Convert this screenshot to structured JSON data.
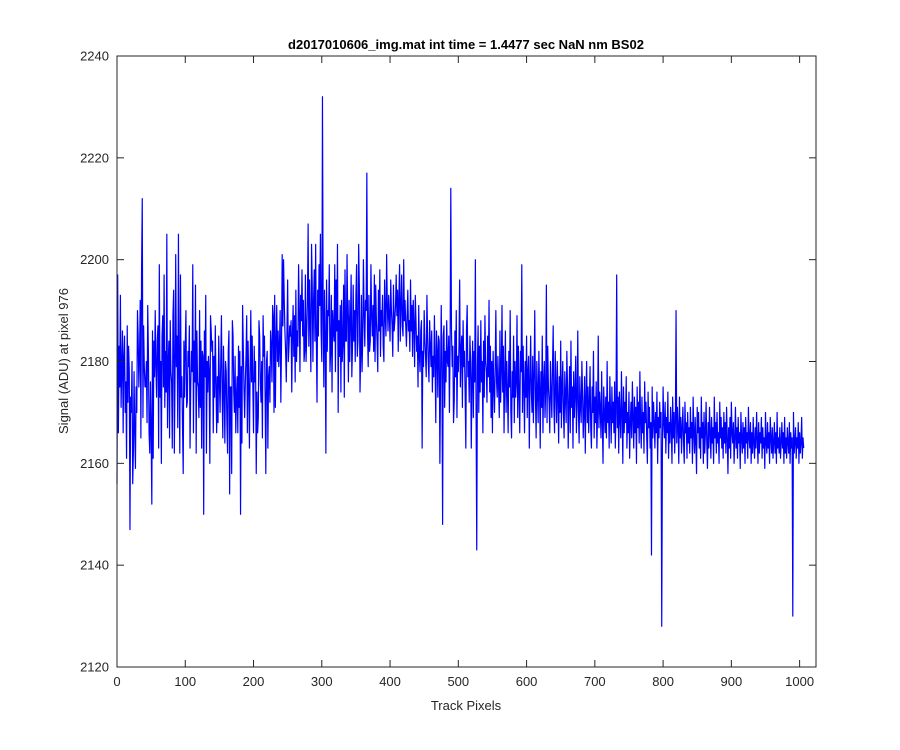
{
  "chart_data": {
    "type": "line",
    "title": "d2017010606_img.mat int time = 1.4477 sec  NaN nm BS02",
    "xlabel": "Track Pixels",
    "ylabel": "Signal (ADU) at pixel 976",
    "xlim": [
      0,
      1024
    ],
    "ylim": [
      2120,
      2240
    ],
    "xticks": [
      0,
      100,
      200,
      300,
      400,
      500,
      600,
      700,
      800,
      900,
      1000
    ],
    "yticks": [
      2120,
      2140,
      2160,
      2180,
      2200,
      2220,
      2240
    ],
    "xtick_labels": [
      "0",
      "100",
      "200",
      "300",
      "400",
      "500",
      "600",
      "700",
      "800",
      "900",
      "1000"
    ],
    "ytick_labels": [
      "2120",
      "2140",
      "2160",
      "2180",
      "2200",
      "2220",
      "2240"
    ],
    "grid": false,
    "series_color": "#0000ff",
    "x_step": 1,
    "series": [
      {
        "values": [
          2156,
          2197,
          2166,
          2183,
          2175,
          2193,
          2171,
          2179,
          2186,
          2166,
          2181,
          2185,
          2170,
          2176,
          2161,
          2187,
          2172,
          2183,
          2178,
          2147,
          2173,
          2170,
          2180,
          2156,
          2162,
          2178,
          2166,
          2159,
          2175,
          2170,
          2190,
          2185,
          2175,
          2181,
          2192,
          2165,
          2198,
          2212,
          2169,
          2187,
          2179,
          2175,
          2175,
          2180,
          2168,
          2191,
          2182,
          2166,
          2162,
          2176,
          2166,
          2152,
          2186,
          2161,
          2184,
          2177,
          2190,
          2179,
          2173,
          2184,
          2187,
          2163,
          2199,
          2173,
          2180,
          2160,
          2185,
          2189,
          2175,
          2197,
          2171,
          2182,
          2174,
          2205,
          2167,
          2179,
          2184,
          2165,
          2188,
          2178,
          2176,
          2163,
          2189,
          2194,
          2162,
          2177,
          2201,
          2179,
          2185,
          2167,
          2205,
          2178,
          2162,
          2197,
          2173,
          2177,
          2167,
          2158,
          2184,
          2173,
          2183,
          2190,
          2171,
          2172,
          2182,
          2179,
          2187,
          2163,
          2175,
          2182,
          2178,
          2199,
          2166,
          2184,
          2176,
          2195,
          2162,
          2186,
          2176,
          2175,
          2169,
          2190,
          2171,
          2184,
          2163,
          2182,
          2181,
          2150,
          2186,
          2177,
          2193,
          2162,
          2180,
          2174,
          2181,
          2178,
          2160,
          2189,
          2186,
          2182,
          2184,
          2166,
          2181,
          2173,
          2187,
          2176,
          2166,
          2177,
          2168,
          2185,
          2176,
          2170,
          2180,
          2189,
          2174,
          2165,
          2183,
          2175,
          2164,
          2180,
          2178,
          2168,
          2162,
          2182,
          2186,
          2154,
          2175,
          2175,
          2158,
          2188,
          2185,
          2174,
          2170,
          2181,
          2166,
          2173,
          2177,
          2166,
          2183,
          2171,
          2182,
          2150,
          2179,
          2164,
          2191,
          2183,
          2175,
          2169,
          2176,
          2181,
          2189,
          2166,
          2184,
          2176,
          2163,
          2178,
          2190,
          2176,
          2185,
          2175,
          2166,
          2183,
          2176,
          2180,
          2158,
          2174,
          2166,
          2169,
          2188,
          2185,
          2176,
          2172,
          2180,
          2165,
          2189,
          2181,
          2185,
          2173,
          2158,
          2180,
          2182,
          2163,
          2177,
          2179,
          2172,
          2186,
          2183,
          2176,
          2191,
          2189,
          2170,
          2193,
          2171,
          2184,
          2191,
          2180,
          2186,
          2179,
          2183,
          2190,
          2172,
          2183,
          2201,
          2187,
          2200,
          2192,
          2186,
          2182,
          2176,
          2186,
          2196,
          2180,
          2183,
          2187,
          2185,
          2188,
          2174,
          2185,
          2191,
          2181,
          2189,
          2176,
          2194,
          2180,
          2186,
          2183,
          2199,
          2190,
          2178,
          2193,
          2188,
          2198,
          2185,
          2192,
          2180,
          2182,
          2197,
          2180,
          2186,
          2192,
          2207,
          2183,
          2196,
          2187,
          2178,
          2203,
          2195,
          2180,
          2192,
          2198,
          2184,
          2203,
          2185,
          2172,
          2194,
          2185,
          2199,
          2191,
          2205,
          2186,
          2180,
          2232,
          2190,
          2175,
          2194,
          2185,
          2162,
          2196,
          2182,
          2190,
          2189,
          2199,
          2178,
          2182,
          2193,
          2174,
          2190,
          2186,
          2184,
          2199,
          2178,
          2196,
          2186,
          2203,
          2170,
          2188,
          2181,
          2191,
          2174,
          2192,
          2180,
          2184,
          2195,
          2173,
          2198,
          2184,
          2184,
          2201,
          2189,
          2176,
          2192,
          2180,
          2188,
          2197,
          2177,
          2183,
          2195,
          2184,
          2190,
          2180,
          2193,
          2199,
          2181,
          2184,
          2203,
          2195,
          2174,
          2181,
          2193,
          2178,
          2185,
          2200,
          2189,
          2183,
          2192,
          2190,
          2217,
          2186,
          2179,
          2193,
          2182,
          2184,
          2199,
          2189,
          2185,
          2191,
          2182,
          2197,
          2180,
          2195,
          2188,
          2184,
          2178,
          2194,
          2186,
          2198,
          2181,
          2190,
          2187,
          2193,
          2183,
          2180,
          2196,
          2189,
          2185,
          2201,
          2191,
          2186,
          2193,
          2189,
          2184,
          2196,
          2190,
          2187,
          2181,
          2195,
          2186,
          2188,
          2191,
          2197,
          2189,
          2194,
          2182,
          2193,
          2199,
          2184,
          2191,
          2197,
          2187,
          2185,
          2200,
          2188,
          2192,
          2187,
          2183,
          2189,
          2194,
          2186,
          2188,
          2182,
          2196,
          2186,
          2191,
          2181,
          2192,
          2187,
          2179,
          2193,
          2188,
          2182,
          2185,
          2175,
          2191,
          2181,
          2178,
          2186,
          2188,
          2163,
          2182,
          2179,
          2190,
          2184,
          2181,
          2177,
          2193,
          2185,
          2180,
          2176,
          2188,
          2183,
          2179,
          2186,
          2174,
          2181,
          2177,
          2189,
          2180,
          2168,
          2186,
          2182,
          2173,
          2185,
          2184,
          2160,
          2177,
          2191,
          2178,
          2148,
          2185,
          2187,
          2171,
          2182,
          2176,
          2188,
          2180,
          2179,
          2185,
          2170,
          2184,
          2214,
          2186,
          2179,
          2183,
          2168,
          2172,
          2186,
          2177,
          2190,
          2169,
          2181,
          2178,
          2183,
          2196,
          2175,
          2182,
          2185,
          2171,
          2188,
          2179,
          2182,
          2174,
          2163,
          2186,
          2191,
          2177,
          2180,
          2172,
          2185,
          2180,
          2163,
          2177,
          2184,
          2169,
          2182,
          2176,
          2200,
          2171,
          2143,
          2179,
          2187,
          2170,
          2183,
          2174,
          2188,
          2176,
          2180,
          2166,
          2184,
          2173,
          2189,
          2180,
          2178,
          2172,
          2185,
          2177,
          2192,
          2174,
          2183,
          2169,
          2180,
          2166,
          2182,
          2175,
          2170,
          2179,
          2190,
          2176,
          2173,
          2181,
          2175,
          2169,
          2186,
          2172,
          2178,
          2191,
          2174,
          2183,
          2166,
          2177,
          2186,
          2170,
          2180,
          2174,
          2166,
          2182,
          2175,
          2190,
          2170,
          2165,
          2178,
          2173,
          2185,
          2168,
          2180,
          2173,
          2176,
          2189,
          2169,
          2183,
          2174,
          2166,
          2182,
          2178,
          2199,
          2170,
          2183,
          2175,
          2166,
          2180,
          2173,
          2185,
          2169,
          2178,
          2181,
          2163,
          2176,
          2185,
          2174,
          2170,
          2181,
          2168,
          2177,
          2190,
          2173,
          2165,
          2180,
          2174,
          2168,
          2182,
          2175,
          2163,
          2178,
          2171,
          2185,
          2166,
          2176,
          2180,
          2169,
          2174,
          2195,
          2168,
          2183,
          2175,
          2172,
          2166,
          2180,
          2174,
          2169,
          2179,
          2187,
          2171,
          2166,
          2182,
          2175,
          2168,
          2180,
          2173,
          2164,
          2177,
          2170,
          2184,
          2167,
          2175,
          2180,
          2170,
          2165,
          2178,
          2173,
          2168,
          2182,
          2175,
          2163,
          2172,
          2179,
          2166,
          2184,
          2171,
          2175,
          2163,
          2178,
          2169,
          2174,
          2181,
          2166,
          2172,
          2186,
          2170,
          2164,
          2177,
          2171,
          2168,
          2180,
          2174,
          2165,
          2170,
          2177,
          2162,
          2173,
          2180,
          2168,
          2175,
          2166,
          2172,
          2179,
          2167,
          2163,
          2175,
          2170,
          2182,
          2165,
          2173,
          2168,
          2176,
          2163,
          2170,
          2185,
          2167,
          2174,
          2171,
          2165,
          2178,
          2168,
          2160,
          2175,
          2170,
          2166,
          2173,
          2165,
          2180,
          2168,
          2172,
          2163,
          2177,
          2170,
          2164,
          2175,
          2168,
          2172,
          2166,
          2176,
          2163,
          2170,
          2197,
          2167,
          2173,
          2162,
          2174,
          2169,
          2165,
          2178,
          2170,
          2160,
          2175,
          2166,
          2172,
          2168,
          2177,
          2163,
          2170,
          2166,
          2174,
          2161,
          2168,
          2172,
          2165,
          2176,
          2169,
          2163,
          2173,
          2166,
          2171,
          2160,
          2175,
          2167,
          2172,
          2164,
          2178,
          2168,
          2163,
          2173,
          2166,
          2170,
          2162,
          2176,
          2168,
          2172,
          2165,
          2160,
          2174,
          2167,
          2171,
          2163,
          2168,
          2142,
          2175,
          2165,
          2172,
          2168,
          2163,
          2170,
          2166,
          2174,
          2160,
          2169,
          2165,
          2172,
          2167,
          2170,
          2128,
          2163,
          2175,
          2168,
          2165,
          2172,
          2162,
          2169,
          2166,
          2174,
          2161,
          2168,
          2164,
          2171,
          2167,
          2160,
          2173,
          2165,
          2170,
          2162,
          2168,
          2190,
          2164,
          2171,
          2167,
          2160,
          2173,
          2165,
          2169,
          2162,
          2167,
          2171,
          2164,
          2160,
          2172,
          2166,
          2168,
          2161,
          2170,
          2164,
          2167,
          2162,
          2171,
          2165,
          2168,
          2160,
          2173,
          2166,
          2162,
          2169,
          2164,
          2158,
          2171,
          2166,
          2170,
          2163,
          2167,
          2161,
          2173,
          2165,
          2168,
          2160,
          2170,
          2162,
          2166,
          2172,
          2164,
          2159,
          2168,
          2163,
          2171,
          2166,
          2161,
          2169,
          2164,
          2167,
          2160,
          2173,
          2165,
          2168,
          2162,
          2170,
          2164,
          2166,
          2160,
          2172,
          2165,
          2169,
          2163,
          2167,
          2161,
          2170,
          2164,
          2168,
          2162,
          2171,
          2165,
          2158,
          2167,
          2163,
          2169,
          2161,
          2172,
          2166,
          2164,
          2168,
          2160,
          2165,
          2171,
          2163,
          2167,
          2161,
          2169,
          2164,
          2166,
          2159,
          2170,
          2165,
          2162,
          2168,
          2163,
          2167,
          2160,
          2169,
          2164,
          2166,
          2161,
          2171,
          2165,
          2163,
          2168,
          2160,
          2166,
          2162,
          2169,
          2164,
          2161,
          2167,
          2163,
          2170,
          2165,
          2160,
          2168,
          2162,
          2166,
          2164,
          2169,
          2161,
          2167,
          2163,
          2165,
          2159,
          2170,
          2164,
          2162,
          2168,
          2163,
          2166,
          2160,
          2169,
          2165,
          2162,
          2167,
          2161,
          2164,
          2168,
          2162,
          2166,
          2160,
          2170,
          2163,
          2165,
          2162,
          2167,
          2161,
          2164,
          2168,
          2163,
          2166,
          2160,
          2169,
          2162,
          2165,
          2161,
          2167,
          2164,
          2162,
          2168,
          2160,
          2166,
          2163,
          2165,
          2130,
          2170,
          2162,
          2164,
          2167,
          2161,
          2165,
          2163,
          2168,
          2160,
          2166,
          2162,
          2164,
          2169,
          2161,
          2165,
          2163
        ]
      }
    ]
  }
}
